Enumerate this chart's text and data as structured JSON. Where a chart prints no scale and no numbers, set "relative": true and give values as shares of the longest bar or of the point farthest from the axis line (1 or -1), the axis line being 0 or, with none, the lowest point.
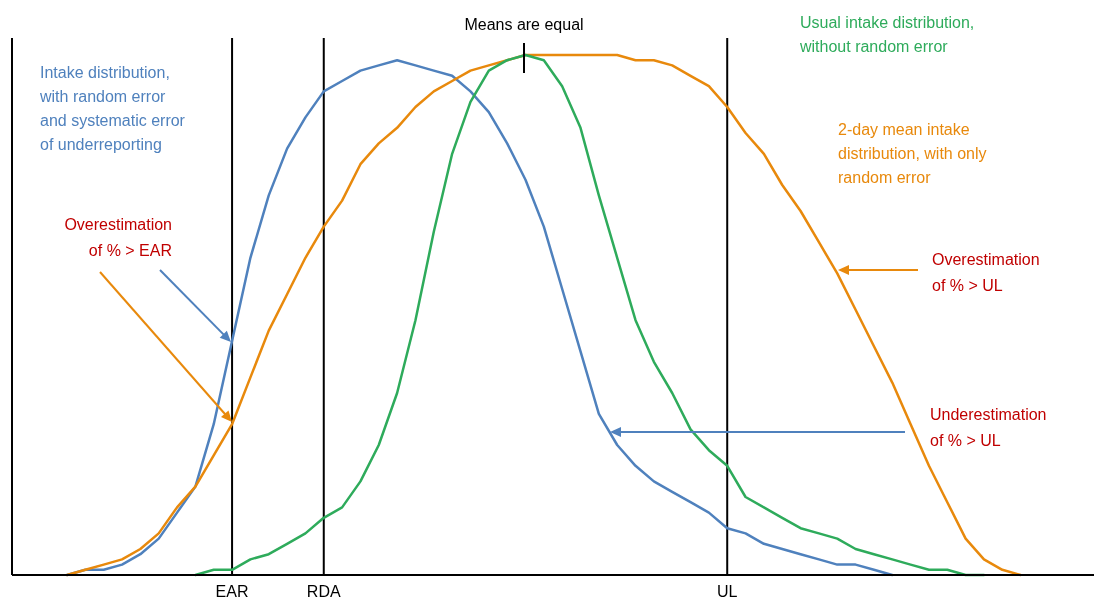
{
  "chart_data": {
    "type": "line",
    "relative": true,
    "line_style": "solid",
    "categories": [
      null,
      null,
      null,
      null,
      null,
      null,
      null,
      null,
      null,
      null,
      null,
      null,
      "EAR",
      null,
      null,
      null,
      null,
      "RDA",
      null,
      null,
      null,
      null,
      null,
      null,
      null,
      null,
      null,
      null,
      null,
      null,
      null,
      null,
      null,
      null,
      null,
      null,
      null,
      null,
      null,
      "UL",
      null,
      null,
      null,
      null,
      null,
      null,
      null,
      null,
      null,
      null,
      null,
      null,
      null,
      null,
      null,
      null,
      null,
      null,
      null,
      null
    ],
    "series": [
      {
        "name": "Intake distribution, with random error and systematic error of underreporting",
        "color": "#4f81bd",
        "values": [
          null,
          null,
          null,
          0,
          0.01,
          0.01,
          0.02,
          0.04,
          0.07,
          0.12,
          0.17,
          0.29,
          0.45,
          0.61,
          0.73,
          0.82,
          0.88,
          0.93,
          0.95,
          0.97,
          0.98,
          0.99,
          0.98,
          0.97,
          0.96,
          0.93,
          0.89,
          0.83,
          0.76,
          0.67,
          0.55,
          0.43,
          0.31,
          0.25,
          0.21,
          0.18,
          0.16,
          0.14,
          0.12,
          0.09,
          0.08,
          0.06,
          0.05,
          0.04,
          0.03,
          0.02,
          0.02,
          0.01,
          0,
          null,
          null,
          null,
          null,
          null,
          null,
          null,
          null,
          null,
          null,
          null
        ]
      },
      {
        "name": "2-day mean intake distribution, with only random error",
        "color": "#e8890c",
        "values": [
          null,
          null,
          null,
          0,
          0.01,
          0.02,
          0.03,
          0.05,
          0.08,
          0.13,
          0.17,
          0.23,
          0.29,
          0.38,
          0.47,
          0.54,
          0.61,
          0.67,
          0.72,
          0.79,
          0.83,
          0.86,
          0.9,
          0.93,
          0.95,
          0.97,
          0.98,
          0.99,
          1,
          1,
          1,
          1,
          1,
          1,
          0.99,
          0.99,
          0.98,
          0.96,
          0.94,
          0.9,
          0.85,
          0.81,
          0.75,
          0.7,
          0.64,
          0.58,
          0.51,
          0.44,
          0.37,
          0.29,
          0.21,
          0.14,
          0.07,
          0.03,
          0.01,
          0,
          null,
          null,
          null,
          null
        ]
      },
      {
        "name": "Usual intake distribution, without random error",
        "color": "#2eab5b",
        "values": [
          null,
          null,
          null,
          null,
          null,
          null,
          null,
          null,
          null,
          null,
          0,
          0.01,
          0.01,
          0.03,
          0.04,
          0.06,
          0.08,
          0.11,
          0.13,
          0.18,
          0.25,
          0.35,
          0.49,
          0.66,
          0.81,
          0.91,
          0.97,
          0.99,
          1,
          0.99,
          0.94,
          0.86,
          0.73,
          0.61,
          0.49,
          0.41,
          0.35,
          0.28,
          0.24,
          0.21,
          0.15,
          0.13,
          0.11,
          0.09,
          0.08,
          0.07,
          0.05,
          0.04,
          0.03,
          0.02,
          0.01,
          0.01,
          0,
          0,
          null,
          null,
          null,
          null,
          null,
          null
        ]
      }
    ],
    "ref_lines": [
      {
        "axis": "x",
        "value": "EAR",
        "color": "#000000"
      },
      {
        "axis": "x",
        "value": "RDA",
        "color": "#000000"
      },
      {
        "axis": "x",
        "value": "UL",
        "color": "#000000"
      }
    ],
    "annotations": [
      "Means are equal",
      "Overestimation of % > EAR",
      "Overestimation of % > UL",
      "Underestimation of % > UL"
    ]
  }
}
